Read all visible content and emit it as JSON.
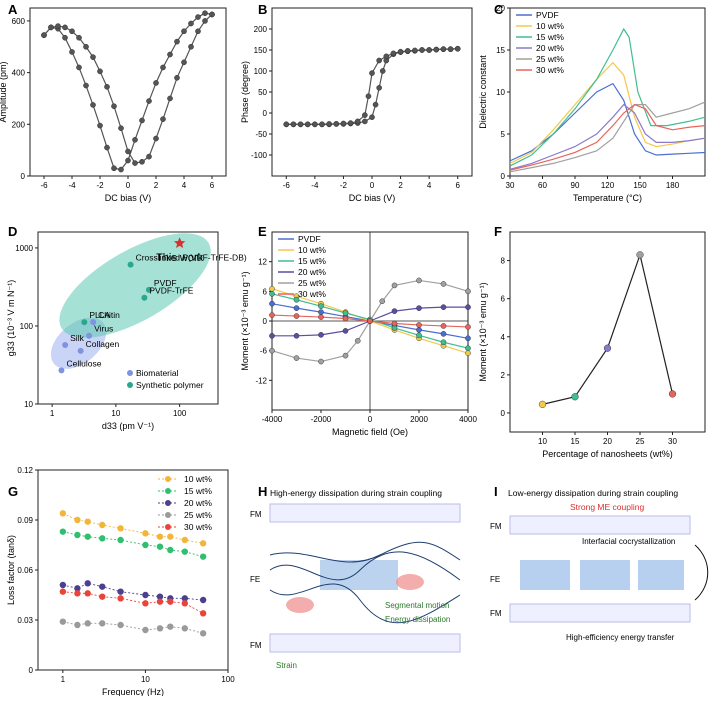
{
  "panel_labels": [
    "A",
    "B",
    "C",
    "D",
    "E",
    "F",
    "G",
    "H",
    "I"
  ],
  "chart_data": [
    {
      "id": "A",
      "type": "line",
      "xlabel": "DC bias (V)",
      "ylabel": "Amplitude (pm)",
      "xlim": [
        -7,
        7
      ],
      "ylim": [
        0,
        650
      ],
      "xticks": [
        -6,
        -4,
        -2,
        0,
        2,
        4,
        6
      ],
      "yticks": [
        0,
        200,
        400,
        600
      ],
      "color": "#333333",
      "series": [
        {
          "x": [
            -6,
            -5.5,
            -5,
            -4.5,
            -4,
            -3.5,
            -3,
            -2.5,
            -2,
            -1.5,
            -1,
            -0.5,
            0,
            0.5,
            1,
            1.5,
            2,
            2.5,
            3,
            3.5,
            4,
            4.5,
            5,
            5.5,
            6
          ],
          "y": [
            545,
            575,
            570,
            535,
            480,
            420,
            350,
            275,
            195,
            110,
            30,
            25,
            60,
            140,
            215,
            290,
            360,
            420,
            470,
            520,
            560,
            590,
            615,
            630,
            625
          ]
        },
        {
          "x": [
            6,
            5.5,
            5,
            4.5,
            4,
            3.5,
            3,
            2.5,
            2,
            1.5,
            1,
            0.5,
            0,
            -0.5,
            -1,
            -1.5,
            -2,
            -2.5,
            -3,
            -3.5,
            -4,
            -4.5,
            -5,
            -5.5,
            -6
          ],
          "y": [
            625,
            600,
            560,
            500,
            440,
            380,
            300,
            220,
            145,
            75,
            55,
            50,
            95,
            185,
            270,
            345,
            405,
            460,
            500,
            535,
            560,
            575,
            580,
            575,
            545
          ]
        }
      ]
    },
    {
      "id": "B",
      "type": "line",
      "xlabel": "DC bias (V)",
      "ylabel": "Phase (degree)",
      "xlim": [
        -7,
        7
      ],
      "ylim": [
        -150,
        250
      ],
      "xticks": [
        -6,
        -4,
        -2,
        0,
        2,
        4,
        6
      ],
      "yticks": [
        -100,
        -50,
        0,
        50,
        100,
        150,
        200
      ],
      "color": "#333333",
      "series": [
        {
          "x": [
            -6,
            -5.5,
            -5,
            -4.5,
            -4,
            -3.5,
            -3,
            -2.5,
            -2,
            -1.5,
            -1,
            -0.5,
            0,
            0.25,
            0.5,
            0.75,
            1,
            1.5,
            2,
            2.5,
            3,
            3.5,
            4,
            4.5,
            5,
            5.5,
            6
          ],
          "y": [
            -27,
            -27,
            -27,
            -27,
            -27,
            -27,
            -27,
            -26,
            -26,
            -25,
            -24,
            -20,
            -10,
            20,
            60,
            100,
            125,
            140,
            145,
            147,
            148,
            150,
            150,
            151,
            152,
            152,
            153
          ]
        },
        {
          "x": [
            6,
            5.5,
            5,
            4.5,
            4,
            3.5,
            3,
            2.5,
            2,
            1.5,
            1,
            0.5,
            0,
            -0.25,
            -0.5,
            -1,
            -1.5,
            -2,
            -2.5,
            -3,
            -3.5,
            -4,
            -4.5,
            -5,
            -5.5,
            -6
          ],
          "y": [
            153,
            152,
            152,
            151,
            150,
            150,
            149,
            148,
            146,
            142,
            135,
            125,
            95,
            40,
            -5,
            -20,
            -24,
            -25,
            -26,
            -26,
            -27,
            -27,
            -27,
            -27,
            -27,
            -27
          ]
        }
      ]
    },
    {
      "id": "C",
      "type": "line",
      "xlabel": "Temperature (°C)",
      "ylabel": "Dielectric constant",
      "xlim": [
        30,
        210
      ],
      "ylim": [
        0,
        20
      ],
      "xticks": [
        30,
        60,
        90,
        120,
        150,
        180
      ],
      "yticks": [
        0,
        5,
        10,
        15,
        20
      ],
      "legend": "top-left",
      "series": [
        {
          "name": "PVDF",
          "color": "#4a6fd1",
          "x": [
            30,
            50,
            70,
            90,
            110,
            125,
            135,
            145,
            155,
            165,
            180,
            195,
            210
          ],
          "y": [
            1.8,
            3,
            5,
            7.5,
            10,
            11,
            9,
            5,
            3,
            2.5,
            2.6,
            2.7,
            2.8
          ]
        },
        {
          "name": "10 wt%",
          "color": "#f2c94c",
          "x": [
            30,
            50,
            70,
            90,
            110,
            125,
            135,
            145,
            155,
            165,
            180,
            195,
            210
          ],
          "y": [
            1.5,
            2.8,
            5.5,
            8.5,
            11.5,
            13.5,
            12,
            7,
            4,
            3.5,
            3.8,
            4.2,
            4.5
          ]
        },
        {
          "name": "15 wt%",
          "color": "#3fbf8f",
          "x": [
            30,
            50,
            70,
            90,
            110,
            125,
            135,
            140,
            148,
            160,
            175,
            195,
            210
          ],
          "y": [
            1.2,
            2.5,
            5,
            8,
            11.5,
            15,
            17.5,
            16.5,
            10,
            6,
            6,
            6.5,
            7
          ]
        },
        {
          "name": "20 wt%",
          "color": "#8a7ac9",
          "x": [
            30,
            50,
            70,
            90,
            110,
            125,
            135,
            145,
            155,
            165,
            180,
            195,
            210
          ],
          "y": [
            0.8,
            1.5,
            2.5,
            3.5,
            5,
            7,
            8.5,
            7.5,
            5,
            4,
            4,
            4.2,
            4.5
          ]
        },
        {
          "name": "25 wt%",
          "color": "#a0a0a0",
          "x": [
            30,
            50,
            70,
            90,
            110,
            125,
            135,
            145,
            155,
            165,
            180,
            195,
            210
          ],
          "y": [
            0.5,
            1,
            1.5,
            2.2,
            3,
            4.5,
            6.5,
            8.5,
            8.5,
            7,
            7.5,
            8,
            8.8
          ]
        },
        {
          "name": "30 wt%",
          "color": "#e8645a",
          "x": [
            30,
            50,
            70,
            90,
            110,
            125,
            135,
            145,
            155,
            165,
            180,
            195,
            210
          ],
          "y": [
            0.7,
            1.3,
            2,
            2.8,
            4,
            6,
            7.5,
            8.5,
            8,
            6,
            5.5,
            5.8,
            6
          ]
        }
      ]
    },
    {
      "id": "D",
      "type": "scatter",
      "xlabel": "d33 (pm V⁻¹)",
      "ylabel": "g33 (10⁻³ V m N⁻¹)",
      "xscale": "log",
      "yscale": "log",
      "xlim": [
        0.6,
        400
      ],
      "ylim": [
        10,
        1600
      ],
      "xticks": [
        1,
        10,
        100
      ],
      "yticks": [
        10,
        100,
        1000
      ],
      "legend": "bottom-right",
      "legend_entries": [
        {
          "name": "Biomaterial",
          "color": "#7f93e0"
        },
        {
          "name": "Synthetic polymer",
          "color": "#2aa88f"
        }
      ],
      "points": [
        {
          "label": "Cellulose",
          "x": 1.4,
          "y": 27,
          "group": "Biomaterial"
        },
        {
          "label": "Silk",
          "x": 1.6,
          "y": 57,
          "group": "Biomaterial"
        },
        {
          "label": "Collagen",
          "x": 2.8,
          "y": 48,
          "group": "Biomaterial"
        },
        {
          "label": "Virus",
          "x": 3.8,
          "y": 75,
          "group": "Biomaterial"
        },
        {
          "label": "PLLA",
          "x": 3.2,
          "y": 112,
          "group": "Synthetic polymer"
        },
        {
          "label": "Chitin",
          "x": 4.4,
          "y": 112,
          "group": "Biomaterial"
        },
        {
          "label": "PVDF",
          "x": 33,
          "y": 290,
          "group": "Synthetic polymer"
        },
        {
          "label": "PVDF-TrFE",
          "x": 28,
          "y": 230,
          "group": "Synthetic polymer"
        },
        {
          "label": "Crosslinked P(VDF-TrFE-DB)",
          "x": 17,
          "y": 610,
          "group": "Synthetic polymer"
        },
        {
          "label": "This work",
          "x": 100,
          "y": 1150,
          "group": "This work",
          "marker": "star",
          "color": "#d9302c"
        }
      ]
    },
    {
      "id": "E",
      "type": "line",
      "xlabel": "Magnetic field (Oe)",
      "ylabel": "Moment (×10⁻³ emu g⁻¹)",
      "xlim": [
        -4000,
        4000
      ],
      "ylim": [
        -18,
        18
      ],
      "xticks": [
        -4000,
        -2000,
        0,
        2000,
        4000
      ],
      "yticks": [
        -12,
        -6,
        0,
        6,
        12
      ],
      "legend": "top-left",
      "series": [
        {
          "name": "PVDF",
          "color": "#4a6fd1",
          "x": [
            -4000,
            -3000,
            -2000,
            -1000,
            0,
            1000,
            2000,
            3000,
            4000
          ],
          "y": [
            3.5,
            2.6,
            1.8,
            0.9,
            0,
            -0.9,
            -1.8,
            -2.6,
            -3.5
          ]
        },
        {
          "name": "10 wt%",
          "color": "#f2c94c",
          "x": [
            -4000,
            -3000,
            -2000,
            -1000,
            0,
            1000,
            2000,
            3000,
            4000
          ],
          "y": [
            6.5,
            5,
            3.5,
            1.8,
            0,
            -1.8,
            -3.5,
            -5,
            -6.5
          ]
        },
        {
          "name": "15 wt%",
          "color": "#3fbf8f",
          "x": [
            -4000,
            -3000,
            -2000,
            -1000,
            0,
            1000,
            2000,
            3000,
            4000
          ],
          "y": [
            5.5,
            4.3,
            3,
            1.6,
            0.3,
            -1.4,
            -2.9,
            -4.3,
            -5.5
          ]
        },
        {
          "name": "20 wt%",
          "color": "#5a4fa3",
          "x": [
            -4000,
            -3000,
            -2000,
            -1000,
            0,
            1000,
            2000,
            3000,
            4000
          ],
          "y": [
            -3,
            -3,
            -2.8,
            -2,
            0,
            2,
            2.6,
            2.8,
            2.8
          ]
        },
        {
          "name": "25 wt%",
          "color": "#a0a0a0",
          "x": [
            -4000,
            -3000,
            -2000,
            -1000,
            -500,
            0,
            500,
            1000,
            2000,
            3000,
            4000
          ],
          "y": [
            -6,
            -7.5,
            -8.2,
            -7,
            -4,
            0,
            4,
            7.2,
            8.2,
            7.5,
            6
          ]
        },
        {
          "name": "30 wt%",
          "color": "#e8645a",
          "x": [
            -4000,
            -3000,
            -2000,
            -1000,
            0,
            1000,
            2000,
            3000,
            4000
          ],
          "y": [
            1.2,
            1,
            0.8,
            0.5,
            0,
            -0.5,
            -0.8,
            -1,
            -1.2
          ]
        }
      ]
    },
    {
      "id": "F",
      "type": "line",
      "xlabel": "Percentage of nanosheets (wt%)",
      "ylabel": "Moment (×10⁻³ emu g⁻¹)",
      "xlim": [
        5,
        35
      ],
      "ylim": [
        -1,
        9.5
      ],
      "xticks": [
        10,
        15,
        20,
        25,
        30
      ],
      "yticks": [
        0,
        2,
        4,
        6,
        8
      ],
      "categories": [
        10,
        15,
        20,
        25,
        30
      ],
      "values": [
        0.45,
        0.85,
        3.4,
        8.3,
        1.0
      ],
      "point_colors": [
        "#f2c94c",
        "#3fbf8f",
        "#8a7ac9",
        "#a0a0a0",
        "#e8645a"
      ]
    },
    {
      "id": "G",
      "type": "scatter",
      "xlabel": "Frequency (Hz)",
      "ylabel": "Loss factor (tanδ)",
      "xscale": "log",
      "xlim": [
        0.5,
        100
      ],
      "ylim": [
        0,
        0.12
      ],
      "xticks": [
        1,
        10,
        100
      ],
      "yticks": [
        0,
        0.03,
        0.06,
        0.09,
        0.12
      ],
      "legend": "top-right",
      "series": [
        {
          "name": "10 wt%",
          "color": "#f2b53c",
          "x": [
            1,
            1.5,
            2,
            3,
            5,
            10,
            15,
            20,
            30,
            50
          ],
          "y": [
            0.094,
            0.09,
            0.089,
            0.087,
            0.085,
            0.082,
            0.08,
            0.08,
            0.078,
            0.076
          ]
        },
        {
          "name": "15 wt%",
          "color": "#2fbf6f",
          "x": [
            1,
            1.5,
            2,
            3,
            5,
            10,
            15,
            20,
            30,
            50
          ],
          "y": [
            0.083,
            0.081,
            0.08,
            0.079,
            0.078,
            0.075,
            0.074,
            0.072,
            0.071,
            0.068
          ]
        },
        {
          "name": "20 wt%",
          "color": "#4b3f8f",
          "x": [
            1,
            1.5,
            2,
            3,
            5,
            10,
            15,
            20,
            30,
            50
          ],
          "y": [
            0.051,
            0.049,
            0.052,
            0.05,
            0.047,
            0.045,
            0.044,
            0.043,
            0.043,
            0.042
          ]
        },
        {
          "name": "25 wt%",
          "color": "#9a9a9a",
          "x": [
            1,
            1.5,
            2,
            3,
            5,
            10,
            15,
            20,
            30,
            50
          ],
          "y": [
            0.029,
            0.027,
            0.028,
            0.028,
            0.027,
            0.024,
            0.025,
            0.026,
            0.025,
            0.022
          ]
        },
        {
          "name": "30 wt%",
          "color": "#e8443a",
          "x": [
            1,
            1.5,
            2,
            3,
            5,
            10,
            15,
            20,
            30,
            50
          ],
          "y": [
            0.047,
            0.046,
            0.046,
            0.044,
            0.043,
            0.04,
            0.041,
            0.041,
            0.04,
            0.034
          ]
        }
      ]
    }
  ],
  "schematic_H": {
    "title": "High-energy dissipation during strain coupling",
    "labels": {
      "fm_top": "FM",
      "fe": "FE",
      "fm_bottom": "FM",
      "segmental": "Segmental motion",
      "dissipation": "Energy dissipation",
      "strain": "Strain"
    }
  },
  "schematic_I": {
    "title": "Low-energy dissipation during strain coupling",
    "subtitle": "Strong ME coupling",
    "labels": {
      "fm_top": "FM",
      "fe": "FE",
      "fm_bottom": "FM",
      "cocrystal": "Interfacial cocrystallization",
      "transfer": "High-efficiency energy transfer"
    }
  }
}
